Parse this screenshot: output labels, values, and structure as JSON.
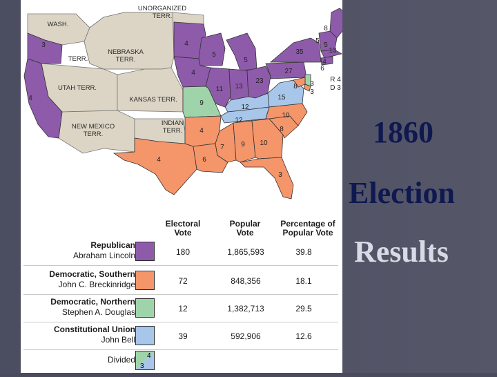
{
  "slide": {
    "title_line1": "1860",
    "title_line2": "Election",
    "title_line3": "Results"
  },
  "map": {
    "labels": {
      "unorganized": "UNORGANIZED\nTERR.",
      "wash": "WASH.",
      "nebraska": "NEBRASKA\nTERR.",
      "terr": "TERR.",
      "utah": "UTAH TERR.",
      "kansas": "KANSAS TERR.",
      "newmexico": "NEW MEXICO\nTERR.",
      "indian": "INDIAN\nTERR."
    },
    "state_votes": [
      {
        "id": "or",
        "text": "3"
      },
      {
        "id": "ca",
        "text": "4"
      },
      {
        "id": "mn",
        "text": "4"
      },
      {
        "id": "wi",
        "text": "5"
      },
      {
        "id": "mi",
        "text": "5"
      },
      {
        "id": "ia",
        "text": "4"
      },
      {
        "id": "il",
        "text": "11"
      },
      {
        "id": "in",
        "text": "13"
      },
      {
        "id": "oh",
        "text": "23"
      },
      {
        "id": "pa",
        "text": "27"
      },
      {
        "id": "ny",
        "text": "35"
      },
      {
        "id": "me",
        "text": "8"
      },
      {
        "id": "vt",
        "text": "5"
      },
      {
        "id": "nh",
        "text": "5"
      },
      {
        "id": "ma",
        "text": "13"
      },
      {
        "id": "ri",
        "text": "4"
      },
      {
        "id": "ct",
        "text": "6"
      },
      {
        "id": "nj",
        "text": "3"
      },
      {
        "id": "mo",
        "text": "9"
      },
      {
        "id": "ky",
        "text": "12"
      },
      {
        "id": "va",
        "text": "15"
      },
      {
        "id": "tn",
        "text": "12"
      },
      {
        "id": "nc",
        "text": "10"
      },
      {
        "id": "sc",
        "text": "8"
      },
      {
        "id": "ga",
        "text": "10"
      },
      {
        "id": "al",
        "text": "9"
      },
      {
        "id": "ms",
        "text": "7"
      },
      {
        "id": "la",
        "text": "6"
      },
      {
        "id": "ar",
        "text": "4"
      },
      {
        "id": "tx",
        "text": "4"
      },
      {
        "id": "fl",
        "text": "3"
      },
      {
        "id": "md",
        "text": "8"
      },
      {
        "id": "de",
        "text": "3"
      }
    ],
    "ri_note": "R 4",
    "de_note": "D 3"
  },
  "legend": {
    "headers": {
      "electoral": "Electoral\nVote",
      "popular": "Popular\nVote",
      "percentage": "Percentage of\nPopular Vote"
    },
    "rows": [
      {
        "party": "Republican",
        "candidate": "Abraham Lincoln",
        "color": "#8e5bab",
        "electoral": "180",
        "popular": "1,865,593",
        "percent": "39.8"
      },
      {
        "party": "Democratic, Southern",
        "candidate": "John C. Breckinridge",
        "color": "#f4956a",
        "electoral": "72",
        "popular": "848,356",
        "percent": "18.1"
      },
      {
        "party": "Democratic, Northern",
        "candidate": "Stephen A. Douglas",
        "color": "#9fd4aa",
        "electoral": "12",
        "popular": "1,382,713",
        "percent": "29.5"
      },
      {
        "party": "Constitutional Union",
        "candidate": "John Bell",
        "color": "#a7c6ea",
        "electoral": "39",
        "popular": "592,906",
        "percent": "12.6"
      }
    ],
    "divided": {
      "label": "Divided",
      "left": "3",
      "right": "4"
    }
  },
  "colors": {
    "republican": "#8e5bab",
    "southern": "#f4956a",
    "northern": "#9fd4aa",
    "union": "#a7c6ea",
    "territory": "#dcd5c5"
  }
}
